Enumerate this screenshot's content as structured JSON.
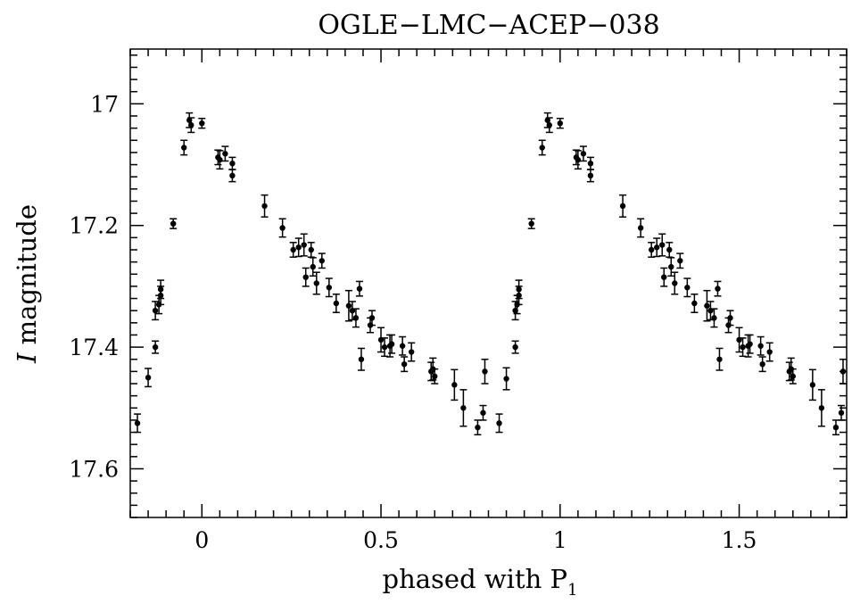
{
  "chart_data": {
    "type": "scatter",
    "title": "OGLE−LMC−ACEP−038",
    "xlabel": "phased with P",
    "xlabel_subscript": "1",
    "ylabel_italic": "I",
    "ylabel": " magnitude",
    "xlim": [
      -0.2,
      1.8
    ],
    "ylim": [
      17.68,
      16.91
    ],
    "y_inverted": true,
    "grid": false,
    "x_ticks": [
      0,
      0.5,
      1,
      1.5
    ],
    "x_tick_labels": [
      "0",
      "0.5",
      "1",
      "1.5"
    ],
    "y_ticks": [
      17.0,
      17.2,
      17.4,
      17.6
    ],
    "y_tick_labels": [
      "17",
      "17.2",
      "17.4",
      "17.6"
    ],
    "points": [
      [
        -0.18,
        17.525,
        0.015
      ],
      [
        -0.15,
        17.45,
        0.015
      ],
      [
        -0.13,
        17.4,
        0.01
      ],
      [
        -0.13,
        17.34,
        0.015
      ],
      [
        -0.12,
        17.33,
        0.015
      ],
      [
        -0.115,
        17.315,
        0.015
      ],
      [
        -0.115,
        17.305,
        0.015
      ],
      [
        -0.08,
        17.197,
        0.008
      ],
      [
        -0.05,
        17.072,
        0.012
      ],
      [
        -0.035,
        17.027,
        0.012
      ],
      [
        -0.03,
        17.035,
        0.012
      ],
      [
        0.0,
        17.032,
        0.008
      ],
      [
        0.045,
        17.088,
        0.012
      ],
      [
        0.05,
        17.092,
        0.015
      ],
      [
        0.065,
        17.082,
        0.012
      ],
      [
        0.085,
        17.098,
        0.01
      ],
      [
        0.085,
        17.118,
        0.01
      ],
      [
        0.175,
        17.168,
        0.018
      ],
      [
        0.225,
        17.204,
        0.015
      ],
      [
        0.255,
        17.24,
        0.012
      ],
      [
        0.27,
        17.236,
        0.015
      ],
      [
        0.285,
        17.232,
        0.018
      ],
      [
        0.29,
        17.285,
        0.015
      ],
      [
        0.305,
        17.24,
        0.012
      ],
      [
        0.31,
        17.268,
        0.015
      ],
      [
        0.32,
        17.295,
        0.018
      ],
      [
        0.335,
        17.258,
        0.012
      ],
      [
        0.355,
        17.302,
        0.015
      ],
      [
        0.375,
        17.328,
        0.015
      ],
      [
        0.41,
        17.332,
        0.025
      ],
      [
        0.42,
        17.34,
        0.015
      ],
      [
        0.43,
        17.352,
        0.015
      ],
      [
        0.44,
        17.304,
        0.012
      ],
      [
        0.445,
        17.42,
        0.018
      ],
      [
        0.47,
        17.364,
        0.012
      ],
      [
        0.475,
        17.352,
        0.012
      ],
      [
        0.5,
        17.388,
        0.02
      ],
      [
        0.51,
        17.4,
        0.015
      ],
      [
        0.525,
        17.398,
        0.018
      ],
      [
        0.53,
        17.395,
        0.015
      ],
      [
        0.56,
        17.398,
        0.015
      ],
      [
        0.565,
        17.428,
        0.012
      ],
      [
        0.585,
        17.408,
        0.015
      ],
      [
        0.64,
        17.44,
        0.015
      ],
      [
        0.645,
        17.436,
        0.018
      ],
      [
        0.65,
        17.448,
        0.012
      ],
      [
        0.705,
        17.462,
        0.025
      ],
      [
        0.73,
        17.5,
        0.03
      ],
      [
        0.77,
        17.532,
        0.012
      ],
      [
        0.785,
        17.508,
        0.012
      ],
      [
        0.79,
        17.44,
        0.02
      ],
      [
        0.83,
        17.525,
        0.015
      ],
      [
        0.85,
        17.452,
        0.018
      ],
      [
        0.875,
        17.4,
        0.01
      ],
      [
        0.875,
        17.34,
        0.015
      ],
      [
        0.88,
        17.33,
        0.015
      ],
      [
        0.885,
        17.315,
        0.015
      ],
      [
        0.885,
        17.305,
        0.015
      ],
      [
        0.92,
        17.197,
        0.008
      ],
      [
        0.95,
        17.072,
        0.012
      ],
      [
        0.965,
        17.027,
        0.012
      ],
      [
        0.97,
        17.035,
        0.012
      ],
      [
        1.0,
        17.032,
        0.008
      ],
      [
        1.045,
        17.088,
        0.012
      ],
      [
        1.05,
        17.092,
        0.015
      ],
      [
        1.065,
        17.082,
        0.012
      ],
      [
        1.085,
        17.098,
        0.01
      ],
      [
        1.085,
        17.118,
        0.01
      ],
      [
        1.175,
        17.168,
        0.018
      ],
      [
        1.225,
        17.204,
        0.015
      ],
      [
        1.255,
        17.24,
        0.012
      ],
      [
        1.27,
        17.236,
        0.015
      ],
      [
        1.285,
        17.232,
        0.018
      ],
      [
        1.29,
        17.285,
        0.015
      ],
      [
        1.305,
        17.24,
        0.012
      ],
      [
        1.31,
        17.268,
        0.015
      ],
      [
        1.32,
        17.295,
        0.018
      ],
      [
        1.335,
        17.258,
        0.012
      ],
      [
        1.355,
        17.302,
        0.015
      ],
      [
        1.375,
        17.328,
        0.015
      ],
      [
        1.41,
        17.332,
        0.025
      ],
      [
        1.42,
        17.34,
        0.015
      ],
      [
        1.43,
        17.352,
        0.015
      ],
      [
        1.44,
        17.304,
        0.012
      ],
      [
        1.445,
        17.42,
        0.018
      ],
      [
        1.47,
        17.364,
        0.012
      ],
      [
        1.475,
        17.352,
        0.012
      ],
      [
        1.5,
        17.388,
        0.02
      ],
      [
        1.51,
        17.4,
        0.015
      ],
      [
        1.525,
        17.398,
        0.018
      ],
      [
        1.53,
        17.395,
        0.015
      ],
      [
        1.56,
        17.398,
        0.015
      ],
      [
        1.565,
        17.428,
        0.012
      ],
      [
        1.585,
        17.408,
        0.015
      ],
      [
        1.64,
        17.44,
        0.015
      ],
      [
        1.645,
        17.436,
        0.018
      ],
      [
        1.65,
        17.448,
        0.012
      ],
      [
        1.705,
        17.462,
        0.025
      ],
      [
        1.73,
        17.5,
        0.03
      ],
      [
        1.77,
        17.532,
        0.012
      ],
      [
        1.785,
        17.508,
        0.012
      ],
      [
        1.79,
        17.44,
        0.02
      ]
    ],
    "point_format": [
      "phase",
      "magnitude",
      "error"
    ]
  }
}
